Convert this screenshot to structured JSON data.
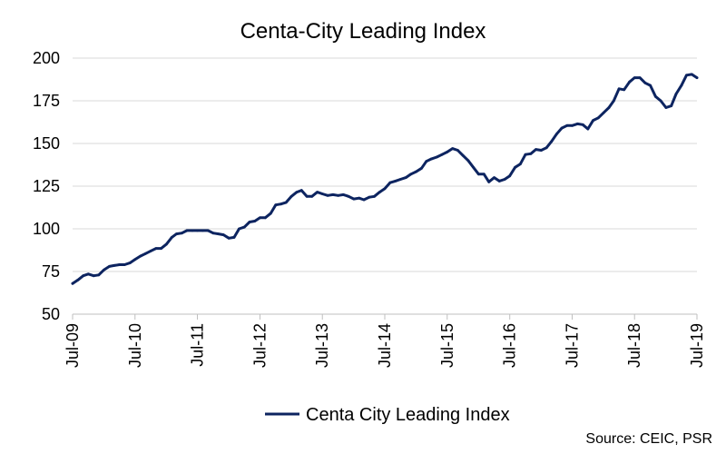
{
  "chart_data": {
    "type": "line",
    "title": "Centa-City Leading Index",
    "xlabel": "",
    "ylabel": "",
    "ylim": [
      50,
      200
    ],
    "y_ticks": [
      "50",
      "75",
      "100",
      "125",
      "150",
      "175",
      "200"
    ],
    "x_ticks": [
      "Jul-09",
      "Jul-10",
      "Jul-11",
      "Jul-12",
      "Jul-13",
      "Jul-14",
      "Jul-15",
      "Jul-16",
      "Jul-17",
      "Jul-18",
      "Jul-19"
    ],
    "grid": true,
    "legend_position": "bottom",
    "series": [
      {
        "name": "Centa City Leading Index",
        "color": "#0d2460",
        "points": [
          [
            "2009-07",
            68
          ],
          [
            "2009-08",
            70
          ],
          [
            "2009-09",
            72.5
          ],
          [
            "2009-10",
            73.5
          ],
          [
            "2009-11",
            72.5
          ],
          [
            "2009-12",
            73
          ],
          [
            "2010-01",
            76
          ],
          [
            "2010-02",
            78
          ],
          [
            "2010-03",
            78.5
          ],
          [
            "2010-04",
            79
          ],
          [
            "2010-05",
            79
          ],
          [
            "2010-06",
            80
          ],
          [
            "2010-07",
            82
          ],
          [
            "2010-08",
            84
          ],
          [
            "2010-09",
            85.5
          ],
          [
            "2010-10",
            87
          ],
          [
            "2010-11",
            88.5
          ],
          [
            "2010-12",
            88.5
          ],
          [
            "2011-01",
            91
          ],
          [
            "2011-02",
            95
          ],
          [
            "2011-03",
            97
          ],
          [
            "2011-04",
            97.5
          ],
          [
            "2011-05",
            99
          ],
          [
            "2011-06",
            99
          ],
          [
            "2011-07",
            99
          ],
          [
            "2011-08",
            99
          ],
          [
            "2011-09",
            99
          ],
          [
            "2011-10",
            97.5
          ],
          [
            "2011-11",
            97
          ],
          [
            "2011-12",
            96.5
          ],
          [
            "2012-01",
            94.5
          ],
          [
            "2012-02",
            95
          ],
          [
            "2012-03",
            100
          ],
          [
            "2012-04",
            101
          ],
          [
            "2012-05",
            104
          ],
          [
            "2012-06",
            104.5
          ],
          [
            "2012-07",
            106.5
          ],
          [
            "2012-08",
            106.5
          ],
          [
            "2012-09",
            109
          ],
          [
            "2012-10",
            114
          ],
          [
            "2012-11",
            114.5
          ],
          [
            "2012-12",
            115.5
          ],
          [
            "2013-01",
            119
          ],
          [
            "2013-02",
            121.5
          ],
          [
            "2013-03",
            122.5
          ],
          [
            "2013-04",
            119
          ],
          [
            "2013-05",
            119
          ],
          [
            "2013-06",
            121.5
          ],
          [
            "2013-07",
            120.5
          ],
          [
            "2013-08",
            119.5
          ],
          [
            "2013-09",
            120
          ],
          [
            "2013-10",
            119.5
          ],
          [
            "2013-11",
            120
          ],
          [
            "2013-12",
            119
          ],
          [
            "2014-01",
            117.5
          ],
          [
            "2014-02",
            118
          ],
          [
            "2014-03",
            117
          ],
          [
            "2014-04",
            118.5
          ],
          [
            "2014-05",
            119
          ],
          [
            "2014-06",
            121.5
          ],
          [
            "2014-07",
            123.5
          ],
          [
            "2014-08",
            127
          ],
          [
            "2014-09",
            128
          ],
          [
            "2014-10",
            129
          ],
          [
            "2014-11",
            130
          ],
          [
            "2014-12",
            132
          ],
          [
            "2015-01",
            133.5
          ],
          [
            "2015-02",
            135.5
          ],
          [
            "2015-03",
            139.5
          ],
          [
            "2015-04",
            141
          ],
          [
            "2015-05",
            142
          ],
          [
            "2015-06",
            143.5
          ],
          [
            "2015-07",
            145
          ],
          [
            "2015-08",
            147
          ],
          [
            "2015-09",
            146
          ],
          [
            "2015-10",
            143
          ],
          [
            "2015-11",
            140
          ],
          [
            "2015-12",
            136
          ],
          [
            "2016-01",
            132
          ],
          [
            "2016-02",
            132
          ],
          [
            "2016-03",
            127.5
          ],
          [
            "2016-04",
            130
          ],
          [
            "2016-05",
            128
          ],
          [
            "2016-06",
            129
          ],
          [
            "2016-07",
            131
          ],
          [
            "2016-08",
            136
          ],
          [
            "2016-09",
            138
          ],
          [
            "2016-10",
            143.5
          ],
          [
            "2016-11",
            144
          ],
          [
            "2016-12",
            146.5
          ],
          [
            "2017-01",
            146
          ],
          [
            "2017-02",
            147.5
          ],
          [
            "2017-03",
            151
          ],
          [
            "2017-04",
            155.5
          ],
          [
            "2017-05",
            159
          ],
          [
            "2017-06",
            160.5
          ],
          [
            "2017-07",
            160.5
          ],
          [
            "2017-08",
            161.5
          ],
          [
            "2017-09",
            161
          ],
          [
            "2017-10",
            158.5
          ],
          [
            "2017-11",
            163.5
          ],
          [
            "2017-12",
            165
          ],
          [
            "2018-01",
            168
          ],
          [
            "2018-02",
            171
          ],
          [
            "2018-03",
            175
          ],
          [
            "2018-04",
            182
          ],
          [
            "2018-05",
            181.5
          ],
          [
            "2018-06",
            186
          ],
          [
            "2018-07",
            188.5
          ],
          [
            "2018-08",
            188.5
          ],
          [
            "2018-09",
            185.5
          ],
          [
            "2018-10",
            184
          ],
          [
            "2018-11",
            177.5
          ],
          [
            "2018-12",
            175
          ],
          [
            "2019-01",
            171
          ],
          [
            "2019-02",
            172
          ],
          [
            "2019-03",
            179
          ],
          [
            "2019-04",
            184
          ],
          [
            "2019-05",
            190
          ],
          [
            "2019-06",
            190.5
          ],
          [
            "2019-07",
            188.5
          ]
        ]
      }
    ]
  },
  "source_text": "Source: CEIC, PSR"
}
